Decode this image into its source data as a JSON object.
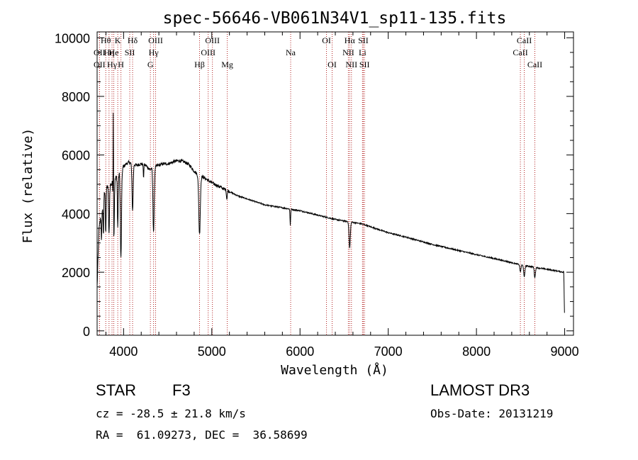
{
  "chart_data": {
    "type": "line",
    "title": "spec-56646-VB061N34V1_sp11-135.fits",
    "xlabel": "Wavelength (Å)",
    "ylabel": "Flux (relative)",
    "xlim": [
      3700,
      9100
    ],
    "ylim": [
      -150,
      10200
    ],
    "xticks": [
      4000,
      5000,
      6000,
      7000,
      8000,
      9000
    ],
    "yticks": [
      0,
      2000,
      4000,
      6000,
      8000,
      10000
    ],
    "xtick_labels": [
      "4000",
      "5000",
      "6000",
      "7000",
      "8000",
      "9000"
    ],
    "ytick_labels": [
      "0",
      "2000",
      "4000",
      "6000",
      "8000",
      "10000"
    ],
    "continuum": {
      "x": [
        3700,
        3720,
        3740,
        3760,
        3780,
        3800,
        3830,
        3860,
        3890,
        3920,
        3950,
        3980,
        4000,
        4030,
        4060,
        4100,
        4150,
        4200,
        4250,
        4300,
        4350,
        4400,
        4450,
        4500,
        4550,
        4600,
        4650,
        4700,
        4750,
        4800,
        4850,
        4900,
        4950,
        5000,
        5100,
        5200,
        5300,
        5400,
        5500,
        5600,
        5800,
        6000,
        6200,
        6400,
        6600,
        6700,
        6800,
        7000,
        7200,
        7500,
        8000,
        8300,
        8500,
        8700,
        8900,
        8990,
        9000
      ],
      "y": [
        1500,
        3400,
        3900,
        4300,
        4700,
        4900,
        4950,
        5000,
        5100,
        5250,
        5350,
        5500,
        5600,
        5700,
        5750,
        5700,
        5650,
        5700,
        5650,
        5500,
        5600,
        5650,
        5700,
        5700,
        5750,
        5800,
        5800,
        5750,
        5650,
        5450,
        5300,
        5250,
        5150,
        5050,
        4900,
        4750,
        4600,
        4500,
        4400,
        4300,
        4200,
        4100,
        3950,
        3800,
        3700,
        3650,
        3550,
        3350,
        3200,
        2950,
        2600,
        2400,
        2250,
        2150,
        2050,
        2000,
        250
      ]
    },
    "absorption_lines": [
      {
        "x": 3750,
        "depth": 1000,
        "width": 6
      },
      {
        "x": 3771,
        "depth": 1200,
        "width": 6
      },
      {
        "x": 3798,
        "depth": 1500,
        "width": 6
      },
      {
        "x": 3835,
        "depth": 1700,
        "width": 7
      },
      {
        "x": 3889,
        "depth": 2000,
        "width": 8
      },
      {
        "x": 3934,
        "depth": 1800,
        "width": 6
      },
      {
        "x": 3970,
        "depth": 3000,
        "width": 9
      },
      {
        "x": 4102,
        "depth": 1600,
        "width": 9
      },
      {
        "x": 4226,
        "depth": 500,
        "width": 4
      },
      {
        "x": 4340,
        "depth": 2200,
        "width": 10
      },
      {
        "x": 4861,
        "depth": 2000,
        "width": 12
      },
      {
        "x": 5170,
        "depth": 300,
        "width": 6
      },
      {
        "x": 5890,
        "depth": 550,
        "width": 5
      },
      {
        "x": 6563,
        "depth": 900,
        "width": 10
      },
      {
        "x": 8498,
        "depth": 250,
        "width": 8
      },
      {
        "x": 8542,
        "depth": 400,
        "width": 9
      },
      {
        "x": 8662,
        "depth": 350,
        "width": 9
      }
    ],
    "emission_lines": [
      {
        "x": 3884,
        "height": 4000,
        "width": 3
      }
    ],
    "line_markers": [
      {
        "x": 3727,
        "label": "OII",
        "row": 1
      },
      {
        "x": 3727,
        "label": "OII",
        "row": 2
      },
      {
        "x": 3798,
        "label": "Hθ",
        "row": 0
      },
      {
        "x": 3835,
        "label": "Hη",
        "row": 1
      },
      {
        "x": 3869,
        "label": "Hγ",
        "row": 2
      },
      {
        "x": 3889,
        "label": "He",
        "row": 1
      },
      {
        "x": 3934,
        "label": "K",
        "row": 0
      },
      {
        "x": 3970,
        "label": "H",
        "row": 2
      },
      {
        "x": 4070,
        "label": "SII",
        "row": 1
      },
      {
        "x": 4102,
        "label": "Hδ",
        "row": 0
      },
      {
        "x": 4304,
        "label": "G",
        "row": 2
      },
      {
        "x": 4340,
        "label": "Hγ",
        "row": 1
      },
      {
        "x": 4363,
        "label": "OIII",
        "row": 0
      },
      {
        "x": 4861,
        "label": "Hβ",
        "row": 2
      },
      {
        "x": 4959,
        "label": "OIII",
        "row": 1
      },
      {
        "x": 5007,
        "label": "OIII",
        "row": 0
      },
      {
        "x": 5175,
        "label": "Mg",
        "row": 2
      },
      {
        "x": 5894,
        "label": "Na",
        "row": 1
      },
      {
        "x": 6300,
        "label": "OI",
        "row": 0
      },
      {
        "x": 6364,
        "label": "OI",
        "row": 2
      },
      {
        "x": 6548,
        "label": "NII",
        "row": 1
      },
      {
        "x": 6563,
        "label": "Hα",
        "row": 0
      },
      {
        "x": 6583,
        "label": "NII",
        "row": 2
      },
      {
        "x": 6708,
        "label": "Li",
        "row": 1
      },
      {
        "x": 6717,
        "label": "SII",
        "row": 0
      },
      {
        "x": 6731,
        "label": "SII",
        "row": 2
      },
      {
        "x": 8498,
        "label": "CaII",
        "row": 1
      },
      {
        "x": 8542,
        "label": "CaII",
        "row": 0
      },
      {
        "x": 8662,
        "label": "CaII",
        "row": 2
      }
    ],
    "marker_color": "#b22222",
    "line_color": "#000000"
  },
  "info": {
    "object_class": "STAR",
    "subclass": "F3",
    "survey": "LAMOST DR3",
    "redshift": "cz = -28.5 ± 21.8 km/s",
    "obs_date": "Obs-Date: 20131219",
    "coordinates": "RA =  61.09273, DEC =  36.58699"
  }
}
